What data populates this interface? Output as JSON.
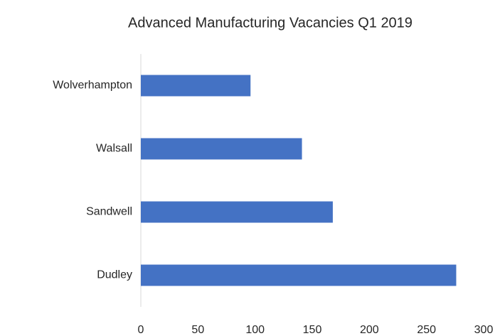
{
  "chart_data": {
    "type": "bar",
    "orientation": "horizontal",
    "title": "Advanced Manufacturing Vacancies Q1 2019",
    "categories": [
      "Dudley",
      "Sandwell",
      "Walsall",
      "Wolverhampton"
    ],
    "values": [
      276,
      168,
      141,
      96
    ],
    "color": "#4472c4",
    "xlim": [
      0,
      300
    ],
    "xticks": [
      0,
      50,
      100,
      150,
      200,
      250,
      300
    ],
    "grid": false
  }
}
